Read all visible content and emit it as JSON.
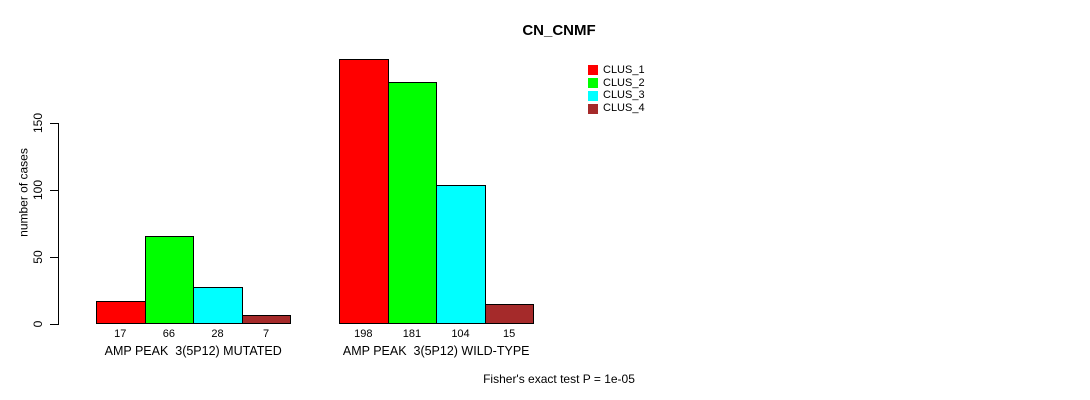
{
  "chart_data": {
    "type": "bar",
    "title": "CN_CNMF",
    "ylabel": "number of cases",
    "yticks": [
      0,
      50,
      100,
      150
    ],
    "ylim": [
      0,
      205
    ],
    "grid": false,
    "legend_position": "top-right",
    "series": [
      {
        "name": "CLUS_1",
        "color": "#FF0000"
      },
      {
        "name": "CLUS_2",
        "color": "#00FF00"
      },
      {
        "name": "CLUS_3",
        "color": "#00FFFF"
      },
      {
        "name": "CLUS_4",
        "color": "#A52A2A"
      }
    ],
    "groups": [
      {
        "label": "AMP PEAK  3(5P12) MUTATED",
        "values": [
          17,
          66,
          28,
          7
        ]
      },
      {
        "label": "AMP PEAK  3(5P12) WILD-TYPE",
        "values": [
          198,
          181,
          104,
          15
        ]
      }
    ],
    "bar_value_labels_shown": true,
    "annotation": "Fisher's exact test P = 1e-05"
  }
}
